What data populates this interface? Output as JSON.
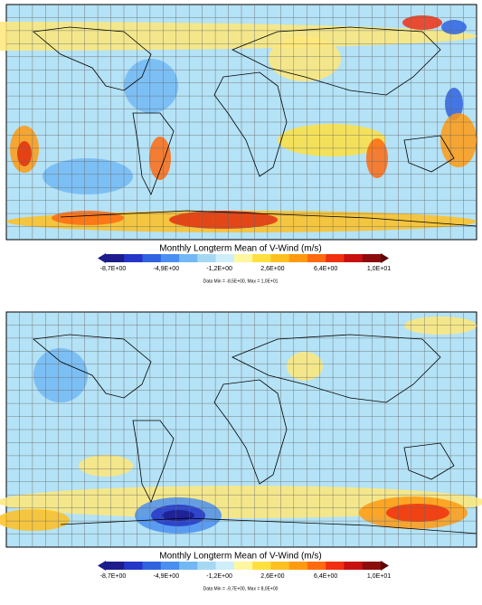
{
  "maps": [
    {
      "colorbar": {
        "title": "Monthly Longterm Mean of V-Wind (m/s)",
        "ticks": [
          "-8,7E+00",
          "-4,9E+00",
          "-1,2E+00",
          "2,6E+00",
          "6,4E+00",
          "1,0E+01"
        ],
        "colors": [
          "#1c1c8c",
          "#2436c8",
          "#2f63e0",
          "#4a8ff0",
          "#72b8f4",
          "#a6d8f4",
          "#cdeefa",
          "#fff6a0",
          "#ffe040",
          "#ffc020",
          "#ff9a10",
          "#ff6a10",
          "#f03010",
          "#c81010",
          "#8c0c0c"
        ]
      },
      "stats": "Data Min = -8,5E+00, Max = 1,0E+01"
    },
    {
      "colorbar": {
        "title": "Monthly Longterm Mean of V-Wind (m/s)",
        "ticks": [
          "-8,7E+00",
          "-4,9E+00",
          "-1,2E+00",
          "2,6E+00",
          "6,4E+00",
          "1,0E+01"
        ],
        "colors": [
          "#1c1c8c",
          "#2436c8",
          "#2f63e0",
          "#4a8ff0",
          "#72b8f4",
          "#a6d8f4",
          "#cdeefa",
          "#fff6a0",
          "#ffe040",
          "#ffc020",
          "#ff9a10",
          "#ff6a10",
          "#f03010",
          "#c81010",
          "#8c0c0c"
        ]
      },
      "stats": "Data Min = -9,7E+00, Max = 8,0E+00"
    }
  ]
}
